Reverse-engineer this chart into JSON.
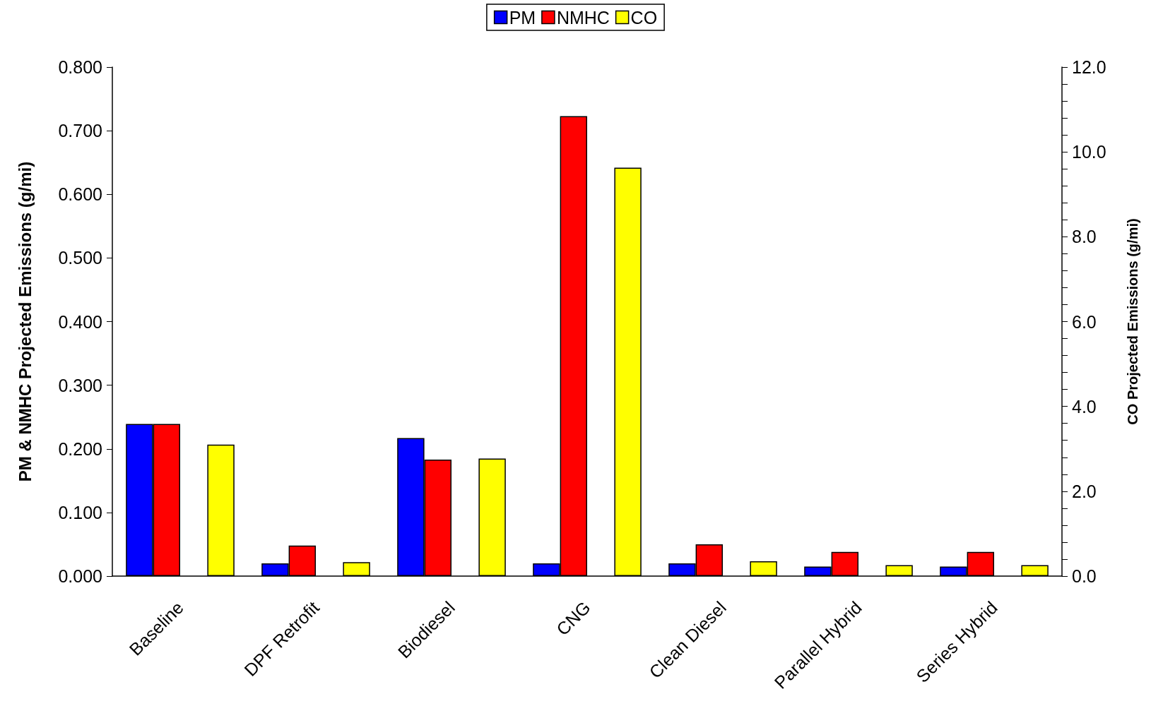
{
  "chart_data": {
    "type": "bar",
    "ylabel": "PM & NMHC Projected Emissions (g/mi)",
    "y2label": "CO Projected Emissions (g/mi)",
    "categories": [
      "Baseline",
      "DPF Retrofit",
      "Biodiesel",
      "CNG",
      "Clean Diesel",
      "Parallel Hybrid",
      "Series Hybrid"
    ],
    "series": [
      {
        "name": "PM",
        "color": "#0000ff",
        "values": [
          0.239,
          0.02,
          0.217,
          0.02,
          0.02,
          0.015,
          0.015
        ]
      },
      {
        "name": "NMHC",
        "color": "#ff0000",
        "values": [
          0.239,
          0.048,
          0.183,
          0.723,
          0.05,
          0.038,
          0.038
        ]
      },
      {
        "name": "CO",
        "color": "#ffff00",
        "axis": "y2",
        "values": [
          3.1,
          0.33,
          2.77,
          9.63,
          0.35,
          0.26,
          0.26
        ]
      }
    ],
    "ylim": [
      0,
      0.8
    ],
    "yticks": [
      {
        "value": 0,
        "label": "0.000"
      },
      {
        "value": 0.1,
        "label": "0.100"
      },
      {
        "value": 0.2,
        "label": "0.200"
      },
      {
        "value": 0.3,
        "label": "0.300"
      },
      {
        "value": 0.4,
        "label": "0.400"
      },
      {
        "value": 0.5,
        "label": "0.500"
      },
      {
        "value": 0.6,
        "label": "0.600"
      },
      {
        "value": 0.7,
        "label": "0.700"
      },
      {
        "value": 0.8,
        "label": "0.800"
      }
    ],
    "y2lim": [
      0,
      12
    ],
    "y2ticks": [
      {
        "value": 0,
        "label": "0.0"
      },
      {
        "value": 0.4,
        "label": null
      },
      {
        "value": 0.8,
        "label": null
      },
      {
        "value": 1.2,
        "label": null
      },
      {
        "value": 1.6,
        "label": null
      },
      {
        "value": 2,
        "label": "2.0"
      },
      {
        "value": 2.4,
        "label": null
      },
      {
        "value": 2.8,
        "label": null
      },
      {
        "value": 3.2,
        "label": null
      },
      {
        "value": 3.6,
        "label": null
      },
      {
        "value": 4,
        "label": "4.0"
      },
      {
        "value": 4.4,
        "label": null
      },
      {
        "value": 4.8,
        "label": null
      },
      {
        "value": 5.2,
        "label": null
      },
      {
        "value": 5.6,
        "label": null
      },
      {
        "value": 6,
        "label": "6.0"
      },
      {
        "value": 6.4,
        "label": null
      },
      {
        "value": 6.8,
        "label": null
      },
      {
        "value": 7.2,
        "label": null
      },
      {
        "value": 7.6,
        "label": null
      },
      {
        "value": 8,
        "label": "8.0"
      },
      {
        "value": 8.4,
        "label": null
      },
      {
        "value": 8.8,
        "label": null
      },
      {
        "value": 9.2,
        "label": null
      },
      {
        "value": 9.6,
        "label": null
      },
      {
        "value": 10,
        "label": "10.0"
      },
      {
        "value": 10.4,
        "label": null
      },
      {
        "value": 10.8,
        "label": null
      },
      {
        "value": 11.2,
        "label": null
      },
      {
        "value": 11.6,
        "label": null
      },
      {
        "value": 12,
        "label": "12.0"
      }
    ],
    "grid": false,
    "legend": "top"
  }
}
